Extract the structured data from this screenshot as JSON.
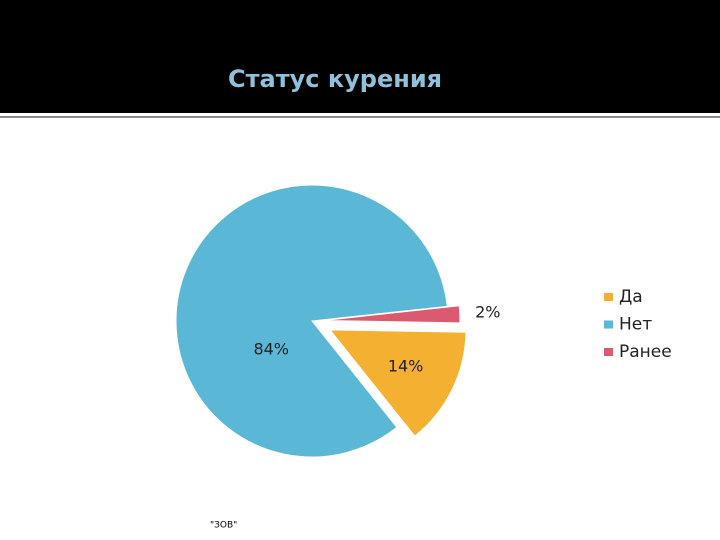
{
  "chart_data": {
    "type": "pie",
    "title": "Статус курения",
    "categories": [
      "Да",
      "Нет",
      "Ранее"
    ],
    "values": [
      14,
      84,
      2
    ],
    "value_labels": [
      "14%",
      "84%",
      "2%"
    ],
    "colors": [
      "#f4b030",
      "#5ab8d6",
      "#dc5a70"
    ],
    "legend": "right"
  },
  "footer": "\"ЗОВ\""
}
